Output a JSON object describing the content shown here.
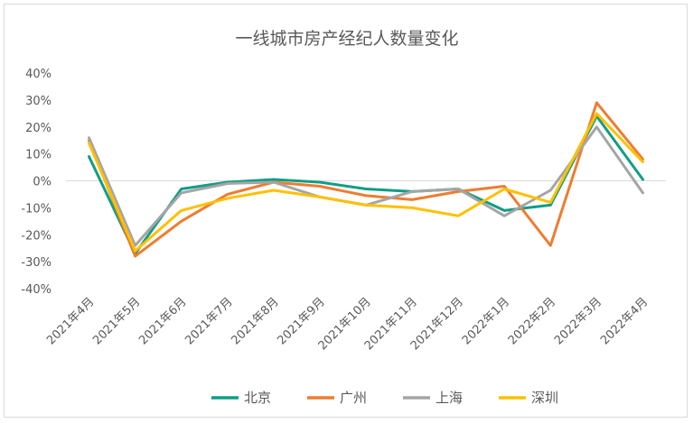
{
  "chart_data": {
    "type": "line",
    "title": "一线城市房产经纪人数量变化",
    "xlabel": "",
    "ylabel": "",
    "categories": [
      "2021年4月",
      "2021年5月",
      "2021年6月",
      "2021年7月",
      "2021年8月",
      "2021年9月",
      "2021年10月",
      "2021年11月",
      "2021年12月",
      "2022年1月",
      "2022年2月",
      "2022年3月",
      "2022年4月"
    ],
    "ylim": [
      -40,
      40
    ],
    "yticks": [
      -40,
      -30,
      -20,
      -10,
      0,
      10,
      20,
      30,
      40
    ],
    "ytick_labels": [
      "-40%",
      "-30%",
      "-20%",
      "-10%",
      "0%",
      "10%",
      "20%",
      "30%",
      "40%"
    ],
    "grid": false,
    "legend_position": "bottom",
    "series": [
      {
        "name": "北京",
        "color": "#0f9e85",
        "values": [
          9,
          -27,
          -3,
          -0.5,
          0.5,
          -0.5,
          -3,
          -4,
          -3,
          -11,
          -9,
          24,
          0.5
        ]
      },
      {
        "name": "广州",
        "color": "#ed7d31",
        "values": [
          15,
          -28,
          -15,
          -5,
          -0.5,
          -2,
          -5.5,
          -7,
          -4,
          -2,
          -24,
          29,
          8
        ]
      },
      {
        "name": "上海",
        "color": "#a5a5a5",
        "values": [
          16,
          -24,
          -4.5,
          -1,
          -0.5,
          -6,
          -9,
          -4,
          -3,
          -13,
          -3.5,
          20,
          -4.5
        ]
      },
      {
        "name": "深圳",
        "color": "#ffc000",
        "values": [
          14,
          -26,
          -11,
          -6.5,
          -3.5,
          -6,
          -9,
          -10,
          -13,
          -3,
          -8,
          25,
          7
        ]
      }
    ]
  }
}
